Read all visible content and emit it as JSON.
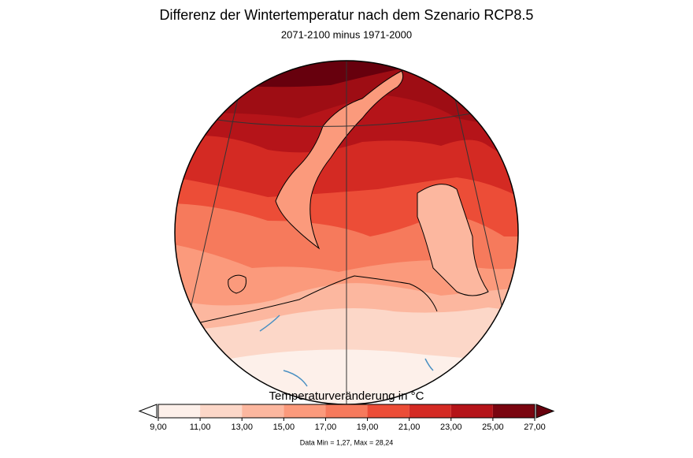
{
  "title": "Differenz der Wintertemperatur nach dem Szenario RCP8.5",
  "subtitle": "2071-2100 minus 1971-2000",
  "colorbar": {
    "label": "Temperaturveränderung in °C",
    "ticks": [
      {
        "value": 9,
        "label": "9,00"
      },
      {
        "value": 11,
        "label": "11,00"
      },
      {
        "value": 13,
        "label": "13,00"
      },
      {
        "value": 15,
        "label": "15,00"
      },
      {
        "value": 17,
        "label": "17,00"
      },
      {
        "value": 19,
        "label": "19,00"
      },
      {
        "value": 21,
        "label": "21,00"
      },
      {
        "value": 23,
        "label": "23,00"
      },
      {
        "value": 25,
        "label": "25,00"
      },
      {
        "value": 27,
        "label": "27,00"
      }
    ],
    "colors": [
      "#fdf0ea",
      "#fcd7c8",
      "#fcb79f",
      "#fb9a7c",
      "#f67a5c",
      "#ec4d37",
      "#d42a23",
      "#b51419",
      "#7a0510"
    ],
    "under_color": "#ffffff",
    "over_color": "#67000d"
  },
  "footnote": "Data Min = 1,27, Max = 28,24"
}
